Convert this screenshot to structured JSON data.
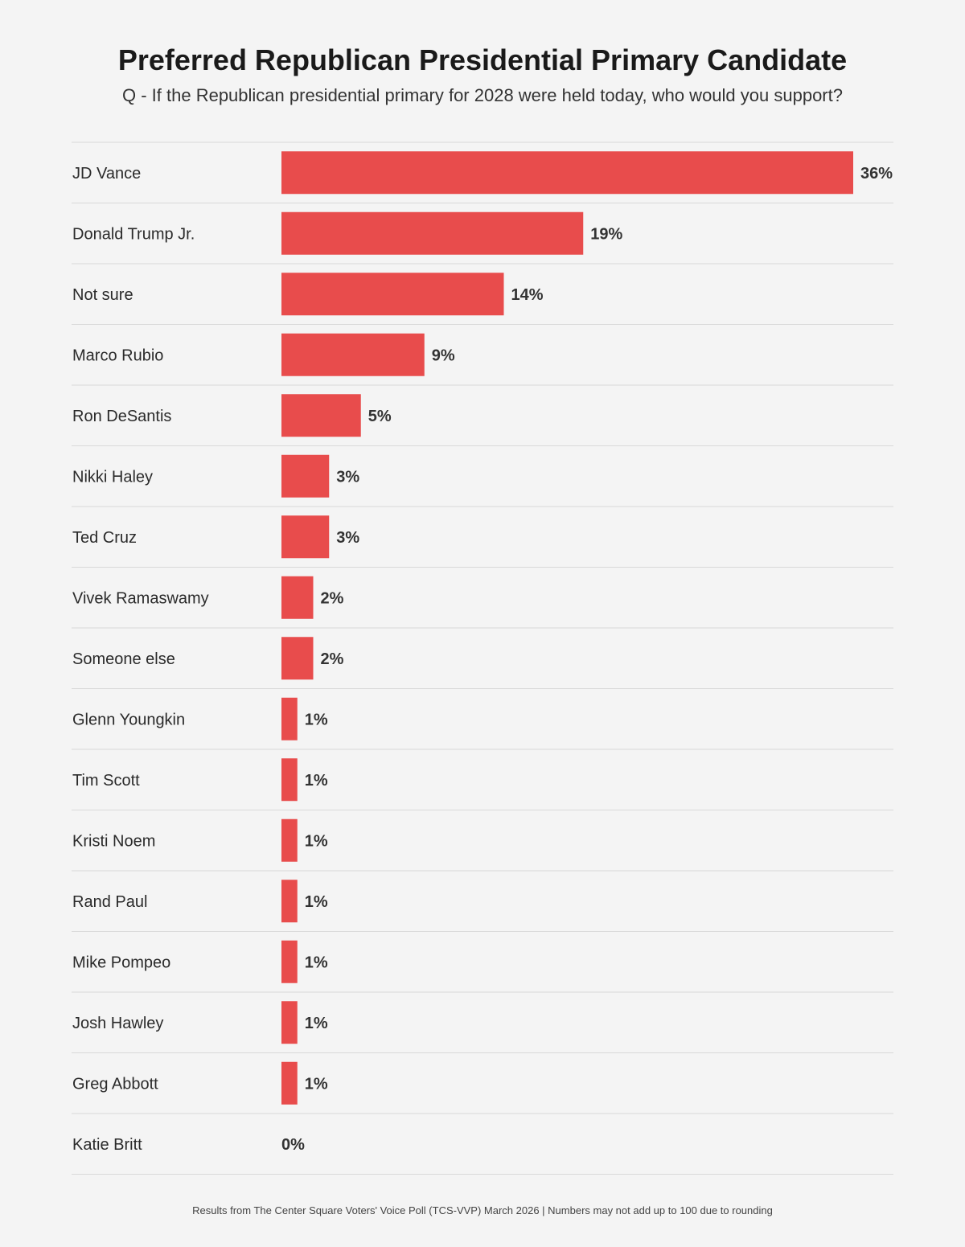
{
  "header": {
    "title": "Preferred Republican Presidential Primary Candidate",
    "subtitle": "Q - If the Republican presidential primary for 2028 were held today, who would you support?"
  },
  "footer": {
    "note": "Results from The Center Square Voters' Voice Poll (TCS-VVP) March 2026 | Numbers may not add up to 100 due to rounding"
  },
  "colors": {
    "bar": "#e84c4c",
    "divider": "#d9d9d9",
    "label": "#2a2a2a",
    "value": "#333333"
  },
  "chart_data": {
    "type": "bar",
    "orientation": "horizontal",
    "grid": false,
    "legend": "none",
    "xlim": [
      0,
      36
    ],
    "value_suffix": "%",
    "categories": [
      "JD Vance",
      "Donald Trump Jr.",
      "Not sure",
      "Marco Rubio",
      "Ron DeSantis",
      "Nikki Haley",
      "Ted Cruz",
      "Vivek Ramaswamy",
      "Someone else",
      "Glenn Youngkin",
      "Tim Scott",
      "Kristi Noem",
      "Rand Paul",
      "Mike Pompeo",
      "Josh Hawley",
      "Greg Abbott",
      "Katie Britt"
    ],
    "values": [
      36,
      19,
      14,
      9,
      5,
      3,
      3,
      2,
      2,
      1,
      1,
      1,
      1,
      1,
      1,
      1,
      0
    ],
    "value_labels": [
      "36%",
      "19%",
      "14%",
      "9%",
      "5%",
      "3%",
      "3%",
      "2%",
      "2%",
      "1%",
      "1%",
      "1%",
      "1%",
      "1%",
      "1%",
      "1%",
      "0%"
    ]
  }
}
